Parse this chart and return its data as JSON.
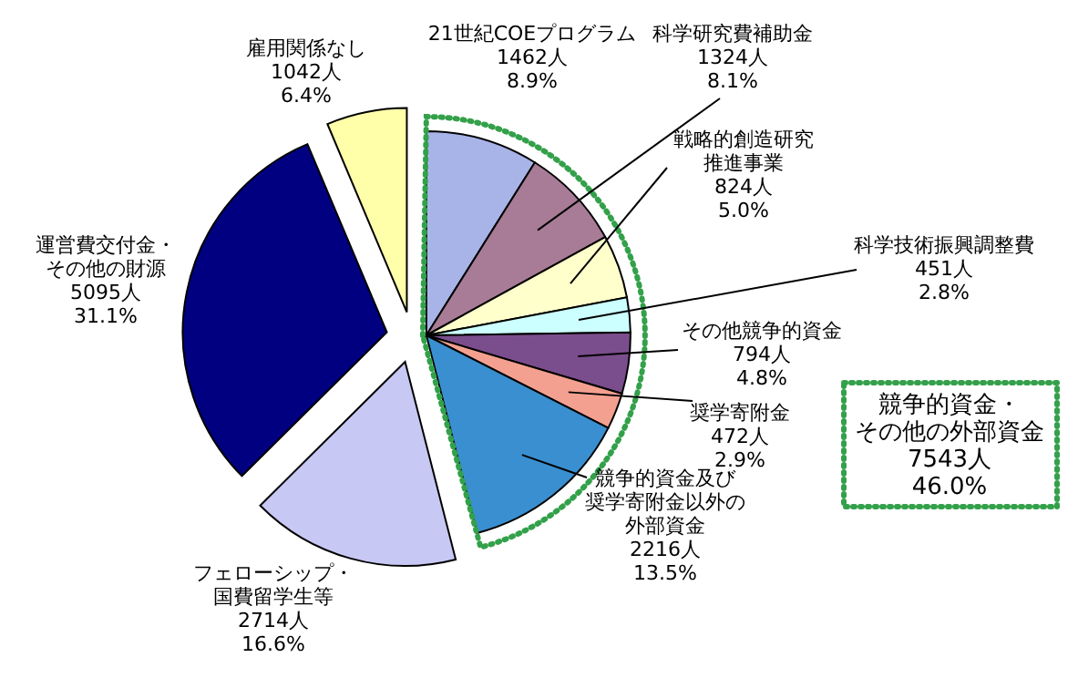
{
  "chart_data": {
    "type": "pie",
    "categories": [
      "21世紀COEプログラム",
      "科学研究費補助金",
      "戦略的創造研究推進事業",
      "科学技術振興調整費",
      "その他競争的資金",
      "奨学寄附金",
      "競争的資金及び奨学寄附金以外の外部資金",
      "フェローシップ・国費留学生等",
      "運営費交付金・その他の財源",
      "雇用関係なし"
    ],
    "values": [
      1462,
      1324,
      824,
      451,
      794,
      472,
      2216,
      2714,
      5095,
      1042
    ],
    "value_labels": [
      "1462人\n8.9%",
      "1324人\n8.1%",
      "824人\n5.0%",
      "451人\n2.8%",
      "794人\n4.8%",
      "472人\n2.9%",
      "2216人\n13.5%",
      "2714人\n16.6%",
      "5095人\n31.1%",
      "1042人\n6.4%"
    ],
    "colors": [
      "#a8b4e8",
      "#a87c96",
      "#ffffcc",
      "#ccffff",
      "#7a4e8c",
      "#f4a090",
      "#3a8fd0",
      "#c8c8f4",
      "#000080",
      "#ffffaa"
    ],
    "annotations": [
      "競争的資金・その他の外部資金\n7543人\n46.0%"
    ]
  }
}
